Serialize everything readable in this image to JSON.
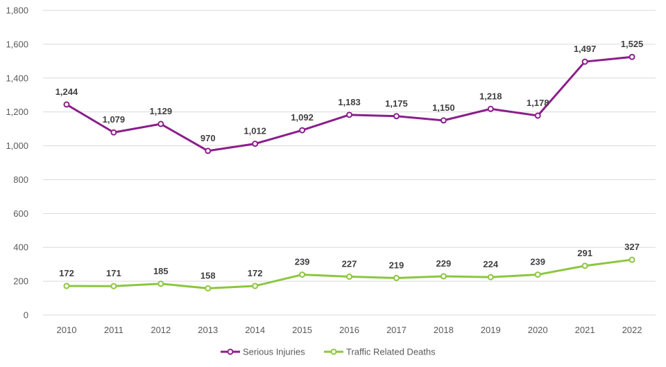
{
  "chart_data": {
    "type": "line",
    "title": "",
    "xlabel": "",
    "ylabel": "",
    "x": [
      "2010",
      "2011",
      "2012",
      "2013",
      "2014",
      "2015",
      "2016",
      "2017",
      "2018",
      "2019",
      "2020",
      "2021",
      "2022"
    ],
    "ylim": [
      0,
      1800
    ],
    "yticks": [
      0,
      200,
      400,
      600,
      800,
      1000,
      1200,
      1400,
      1600,
      1800
    ],
    "ytick_labels": [
      "0",
      "200",
      "400",
      "600",
      "800",
      "1,000",
      "1,200",
      "1,400",
      "1,600",
      "1,800"
    ],
    "grid": true,
    "legend_position": "bottom-center",
    "series": [
      {
        "name": "Serious Injuries",
        "color": "#8b1e8b",
        "values": [
          1244,
          1079,
          1129,
          970,
          1012,
          1092,
          1183,
          1175,
          1150,
          1218,
          1178,
          1497,
          1525
        ],
        "labels": [
          "1,244",
          "1,079",
          "1,129",
          "970",
          "1,012",
          "1,092",
          "1,183",
          "1,175",
          "1,150",
          "1,218",
          "1,178",
          "1,497",
          "1,525"
        ]
      },
      {
        "name": "Traffic Related Deaths",
        "color": "#8cc63f",
        "values": [
          172,
          171,
          185,
          158,
          172,
          239,
          227,
          219,
          229,
          224,
          239,
          291,
          327
        ],
        "labels": [
          "172",
          "171",
          "185",
          "158",
          "172",
          "239",
          "227",
          "219",
          "229",
          "224",
          "239",
          "291",
          "327"
        ]
      }
    ]
  }
}
